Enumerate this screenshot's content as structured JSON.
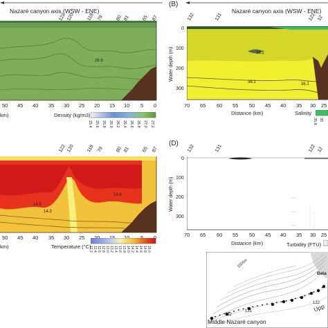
{
  "panel_A": {
    "axis_title": "Nazaré canyon axis (WSW - ENE)",
    "station_labels": [
      "122",
      "120",
      "118",
      "79",
      "80",
      "81",
      "65",
      "87"
    ],
    "x_ticks": [
      "50",
      "45",
      "40",
      "35",
      "30",
      "25",
      "20",
      "15",
      "10",
      "5",
      "0"
    ],
    "x_unit_fragment": "km)",
    "contour_label": "26.9",
    "colorbar_title": "Density (kg/m3)",
    "colorbar_ticks": [
      "25.4",
      "25.6",
      "25.8",
      "26.0",
      "26.2",
      "26.4",
      "26.6",
      "26.8",
      "27.0",
      "27.2"
    ]
  },
  "panel_B": {
    "letter": "(B)",
    "axis_title": "Nazaré canyon axis (WSW - ENE)",
    "station_labels": [
      "132",
      "131",
      "122",
      "12"
    ],
    "y_label": "Water depth (m)",
    "y_ticks": [
      "0",
      "100",
      "200",
      "300"
    ],
    "x_ticks": [
      "70",
      "65",
      "60",
      "55",
      "50",
      "45",
      "40",
      "35",
      "30",
      "25"
    ],
    "x_label": "Distance (km)",
    "contour_labels": [
      "36.2",
      "36.1",
      "36.1"
    ],
    "colorbar_title": "Salinity",
    "colorbar_ticks": [
      "35.8",
      "35"
    ]
  },
  "panel_C": {
    "station_labels": [
      "122",
      "120",
      "118",
      "79",
      "80",
      "81",
      "65",
      "87"
    ],
    "x_ticks": [
      "50",
      "45",
      "40",
      "35",
      "30",
      "25",
      "20",
      "15",
      "10",
      "5",
      "0"
    ],
    "x_unit_fragment": "km)",
    "contour_labels": [
      "14.8",
      "14.3",
      "14.8"
    ],
    "colorbar_title": "Temperature (°C)",
    "colorbar_ticks": [
      "12.2",
      "12.4",
      "12.6",
      "12.8",
      "13.0",
      "13.2",
      "13.4",
      "13.6",
      "13.8",
      "14.0",
      "14.2",
      "14.4",
      "14.6",
      "14.8",
      "15.0"
    ]
  },
  "panel_D": {
    "letter": "(D)",
    "station_labels": [
      "132",
      "131",
      "122",
      "12"
    ],
    "y_label": "Water depth (m)",
    "y_ticks": [
      "0",
      "100",
      "200",
      "300"
    ],
    "x_ticks": [
      "70",
      "65",
      "60",
      "55",
      "50",
      "45",
      "40",
      "35",
      "30",
      "25"
    ],
    "x_label": "Distance (km)",
    "colorbar_title": "Turbidity (FTU)"
  },
  "map": {
    "place_label": "Middle Nazaré canyon",
    "place_label_right": "Upp",
    "place_label_top": "Bela",
    "depth_label": "1000m",
    "station_labels": [
      "132",
      "131",
      "122"
    ]
  },
  "colors": {
    "density_fill": "#7fae5a",
    "salinity_fill": "#d9d92e",
    "temperature_hot": "#e8321e",
    "seabed": "#5a3220"
  }
}
